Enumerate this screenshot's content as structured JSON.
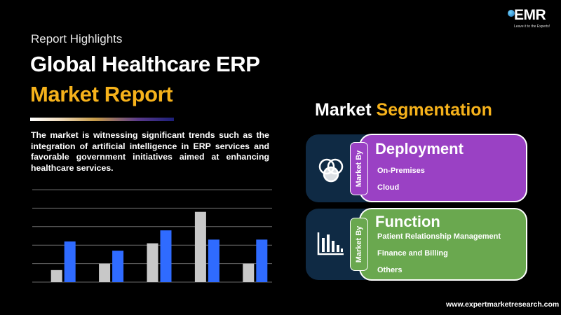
{
  "logo": {
    "text": "EMR",
    "tagline": "Leave it to the Experts!"
  },
  "header": {
    "eyebrow": "Report Highlights",
    "title_line1": "Global Healthcare ERP",
    "title_line2": "Market Report"
  },
  "description": "The market is witnessing significant trends such as the integration of artificial intelligence in ERP services and favorable government initiatives aimed at enhancing healthcare services.",
  "segmentation": {
    "title_white": "Market",
    "title_yellow": "Segmentation",
    "side_label": "Market By",
    "groups": [
      {
        "name": "Deployment",
        "icon": "venn-circles-icon",
        "color": "#9a41c4",
        "items": [
          "On-Premises",
          "Cloud"
        ]
      },
      {
        "name": "Function",
        "icon": "bar-chart-icon",
        "color": "#6aa84f",
        "items": [
          "Patient Relationship Management",
          "Finance and Billing",
          "Others"
        ]
      }
    ]
  },
  "colors": {
    "accent_yellow": "#f6b21b",
    "series_gray": "#c8c8c8",
    "series_blue": "#2f6bff",
    "panel_dark": "#0f2a44"
  },
  "chart_data": {
    "type": "bar",
    "categories": [
      "",
      "",
      "",
      "",
      ""
    ],
    "series": [
      {
        "values": [
          13,
          20,
          42,
          76,
          20
        ]
      },
      {
        "values": [
          44,
          34,
          56,
          46,
          46
        ]
      }
    ],
    "ylim": [
      0,
      100
    ],
    "grid": true
  },
  "footer": {
    "url": "www.expertmarketresearch.com"
  }
}
